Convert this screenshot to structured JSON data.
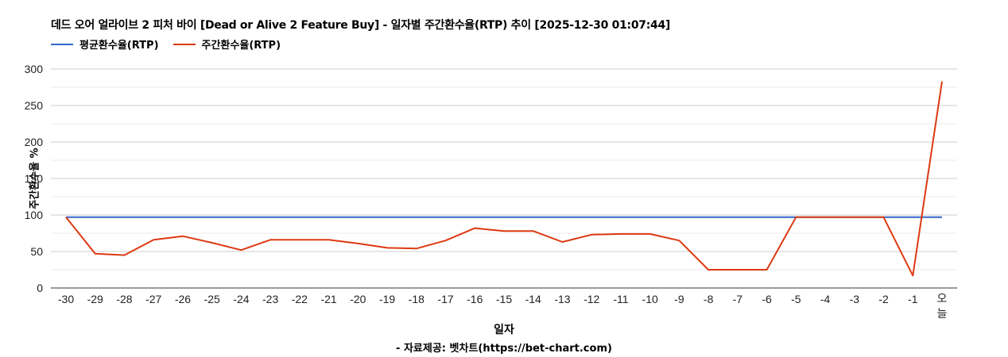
{
  "header": {
    "title": "데드 오어 얼라이브 2 피처 바이 [Dead or Alive 2 Feature Buy] - 일자별 주간환수율(RTP) 추이 [2025-12-30 01:07:44]"
  },
  "legend": {
    "items": [
      {
        "label": "평균환수율(RTP)",
        "color": "#3366cc"
      },
      {
        "label": "주간환수율(RTP)",
        "color": "#dc3912"
      }
    ]
  },
  "axes": {
    "xlabel": "일자",
    "ylabel": "주간환수율 %",
    "source": "- 자료제공: 벳차트(https://bet-chart.com)"
  },
  "chart_data": {
    "type": "line",
    "title": "데드 오어 얼라이브 2 피처 바이 [Dead or Alive 2 Feature Buy] - 일자별 주간환수율(RTP) 추이 [2025-12-30 01:07:44]",
    "xlabel": "일자",
    "ylabel": "주간환수율 %",
    "ylim": [
      0,
      300
    ],
    "yticks": [
      0,
      50,
      100,
      150,
      200,
      250,
      300
    ],
    "grid": true,
    "legend_position": "top",
    "categories": [
      "-30",
      "-29",
      "-28",
      "-27",
      "-26",
      "-25",
      "-24",
      "-23",
      "-22",
      "-21",
      "-20",
      "-19",
      "-18",
      "-17",
      "-16",
      "-15",
      "-14",
      "-13",
      "-12",
      "-11",
      "-10",
      "-9",
      "-8",
      "-7",
      "-6",
      "-5",
      "-4",
      "-3",
      "-2",
      "-1",
      "오늘"
    ],
    "series": [
      {
        "name": "평균환수율(RTP)",
        "color": "#3366cc",
        "values": [
          97,
          97,
          97,
          97,
          97,
          97,
          97,
          97,
          97,
          97,
          97,
          97,
          97,
          97,
          97,
          97,
          97,
          97,
          97,
          97,
          97,
          97,
          97,
          97,
          97,
          97,
          97,
          97,
          97,
          97,
          97
        ]
      },
      {
        "name": "주간환수율(RTP)",
        "color": "#dc3912",
        "values": [
          97,
          47,
          45,
          66,
          71,
          62,
          52,
          66,
          66,
          66,
          61,
          55,
          54,
          65,
          82,
          78,
          78,
          63,
          73,
          74,
          74,
          65,
          25,
          25,
          25,
          97,
          97,
          97,
          97,
          17,
          283
        ]
      }
    ]
  }
}
